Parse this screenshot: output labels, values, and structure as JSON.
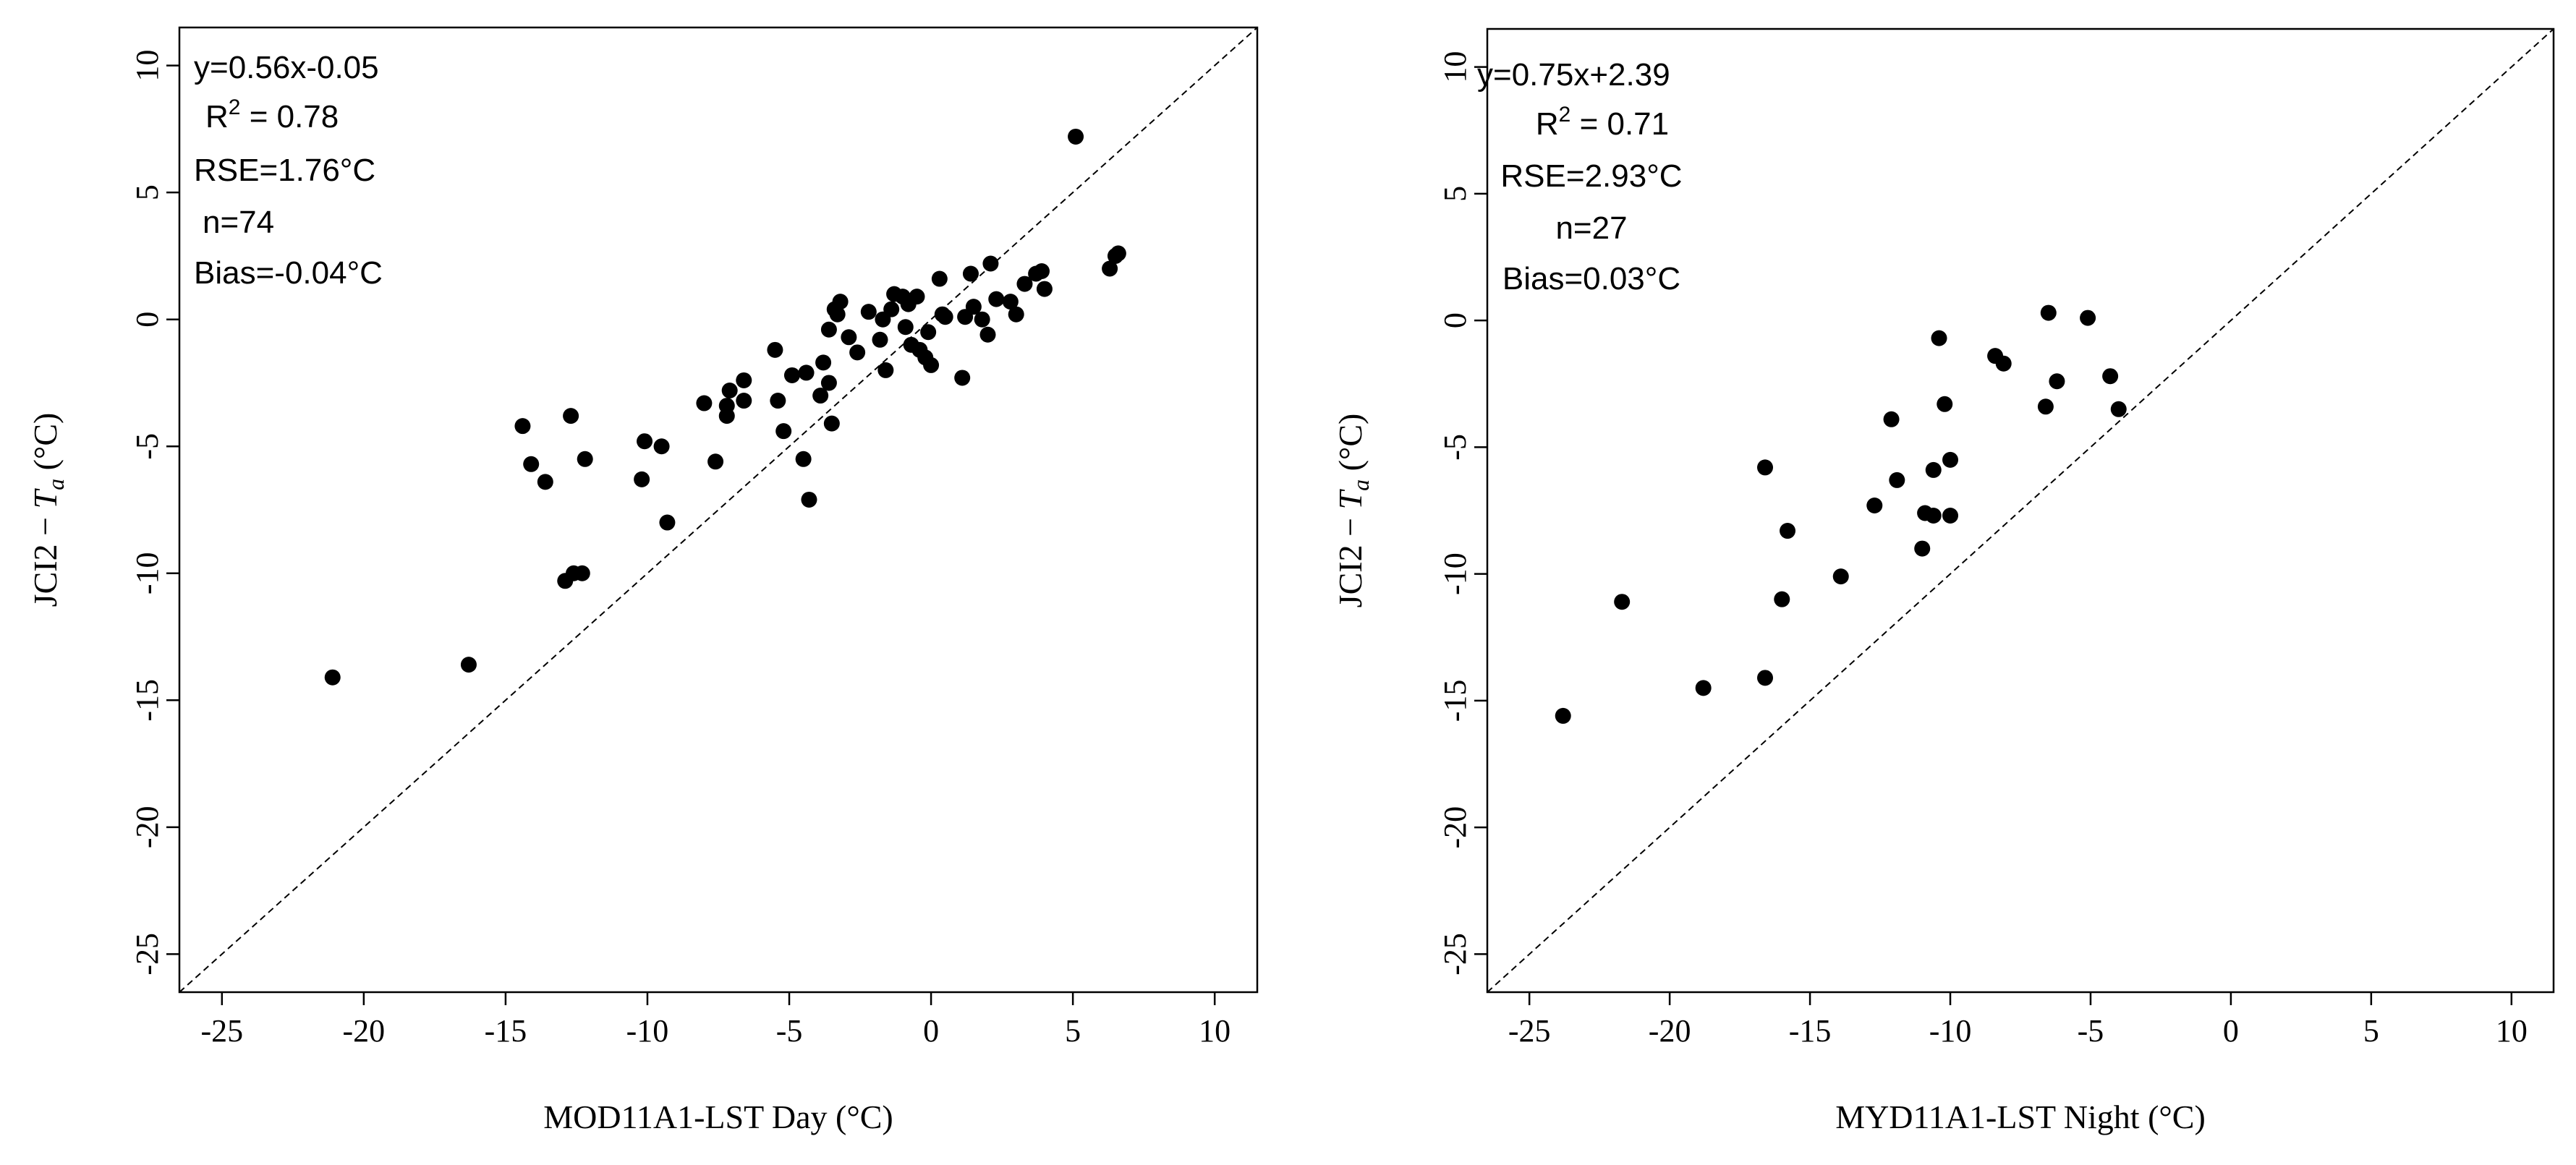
{
  "chart_data": [
    {
      "type": "scatter",
      "xlabel": "MOD11A1-LST Day (°C)",
      "ylabel": "JCI2 − T_a (°C)",
      "ylabel_text": "JCI2 − ",
      "ylabel_var": "T",
      "ylabel_sub": "a",
      "ylabel_unit": " (°C)",
      "xlim": [
        -26.5,
        11.5
      ],
      "ylim": [
        -26.5,
        11.5
      ],
      "xticks": [
        -25,
        -20,
        -15,
        -10,
        -5,
        0,
        5,
        10
      ],
      "xtick_labels": [
        "-25",
        "-20",
        "-15",
        "-10",
        "-5",
        "0",
        "5",
        "10"
      ],
      "yticks": [
        -25,
        -20,
        -15,
        -10,
        -5,
        0,
        5,
        10
      ],
      "ytick_labels": [
        "-25",
        "-20",
        "-15",
        "-10",
        "-5",
        "0",
        "5",
        "10"
      ],
      "reference_line": "1:1",
      "annotations": {
        "equation": "y=0.56x-0.05",
        "r2_label": "R",
        "r2_sup": "2",
        "r2_value": " = 0.78",
        "rse": "RSE=1.76°C",
        "n": "n=74",
        "bias": "Bias=-0.04°C"
      },
      "points": [
        [
          -21.1,
          -14.1
        ],
        [
          -16.3,
          -13.6
        ],
        [
          -14.4,
          -4.2
        ],
        [
          -14.1,
          -5.7
        ],
        [
          -13.6,
          -6.4
        ],
        [
          -12.7,
          -3.8
        ],
        [
          -12.2,
          -5.5
        ],
        [
          -12.9,
          -10.3
        ],
        [
          -12.6,
          -10.0
        ],
        [
          -12.3,
          -10.0
        ],
        [
          -10.1,
          -4.8
        ],
        [
          -10.2,
          -6.3
        ],
        [
          -9.5,
          -5.0
        ],
        [
          -9.3,
          -8.0
        ],
        [
          -8.0,
          -3.3
        ],
        [
          -7.6,
          -5.6
        ],
        [
          -7.2,
          -3.4
        ],
        [
          -7.1,
          -2.8
        ],
        [
          -7.2,
          -3.8
        ],
        [
          -6.6,
          -2.4
        ],
        [
          -6.6,
          -3.2
        ],
        [
          -5.5,
          -1.2
        ],
        [
          -5.4,
          -3.2
        ],
        [
          -5.2,
          -4.4
        ],
        [
          -4.9,
          -2.2
        ],
        [
          -4.5,
          -5.5
        ],
        [
          -4.4,
          -2.1
        ],
        [
          -4.3,
          -7.1
        ],
        [
          -3.9,
          -3.0
        ],
        [
          -3.8,
          -1.7
        ],
        [
          -3.6,
          -0.4
        ],
        [
          -3.6,
          -2.5
        ],
        [
          -3.5,
          -4.1
        ],
        [
          -3.4,
          0.4
        ],
        [
          -3.2,
          0.7
        ],
        [
          -3.3,
          0.2
        ],
        [
          -2.9,
          -0.7
        ],
        [
          -2.6,
          -1.3
        ],
        [
          -2.2,
          0.3
        ],
        [
          -1.8,
          -0.8
        ],
        [
          -1.7,
          0.0
        ],
        [
          -1.6,
          -2.0
        ],
        [
          -1.4,
          0.4
        ],
        [
          -1.3,
          1.0
        ],
        [
          -1.0,
          0.9
        ],
        [
          -0.9,
          -0.3
        ],
        [
          -0.8,
          0.6
        ],
        [
          -0.7,
          -1.0
        ],
        [
          -0.5,
          0.9
        ],
        [
          -0.4,
          -1.2
        ],
        [
          -0.2,
          -1.5
        ],
        [
          -0.1,
          -0.5
        ],
        [
          0.0,
          -1.8
        ],
        [
          0.3,
          1.6
        ],
        [
          0.4,
          0.2
        ],
        [
          0.5,
          0.1
        ],
        [
          1.1,
          -2.3
        ],
        [
          1.2,
          0.1
        ],
        [
          1.4,
          1.8
        ],
        [
          1.5,
          0.5
        ],
        [
          1.8,
          0.0
        ],
        [
          2.0,
          -0.6
        ],
        [
          2.1,
          2.2
        ],
        [
          2.3,
          0.8
        ],
        [
          2.8,
          0.7
        ],
        [
          3.0,
          0.2
        ],
        [
          3.3,
          1.4
        ],
        [
          3.7,
          1.8
        ],
        [
          3.9,
          1.9
        ],
        [
          4.0,
          1.2
        ],
        [
          5.1,
          7.2
        ],
        [
          6.3,
          2.0
        ],
        [
          6.5,
          2.5
        ],
        [
          6.6,
          2.6
        ]
      ]
    },
    {
      "type": "scatter",
      "xlabel": "MYD11A1-LST Night (°C)",
      "ylabel": "JCI2 − T_a (°C)",
      "ylabel_text": "JCI2 − ",
      "ylabel_var": "T",
      "ylabel_sub": "a",
      "ylabel_unit": " (°C)",
      "xlim": [
        -26.5,
        11.5
      ],
      "ylim": [
        -26.5,
        11.5
      ],
      "xticks": [
        -25,
        -20,
        -15,
        -10,
        -5,
        0,
        5,
        10
      ],
      "xtick_labels": [
        "-25",
        "-20",
        "-15",
        "-10",
        "-5",
        "0",
        "5",
        "10"
      ],
      "yticks": [
        -25,
        -20,
        -15,
        -10,
        -5,
        0,
        5,
        10
      ],
      "ytick_labels": [
        "-25",
        "-20",
        "-15",
        "-10",
        "-5",
        "0",
        "5",
        "10"
      ],
      "reference_line": "1:1",
      "annotations": {
        "equation": "y=0.75x+2.39",
        "r2_label": "R",
        "r2_sup": "2",
        "r2_value": " = 0.71",
        "rse": "RSE=2.93°C",
        "n": "n=27",
        "bias": "Bias=0.03°C"
      },
      "points": [
        [
          -23.8,
          -15.6
        ],
        [
          -21.7,
          -11.1
        ],
        [
          -18.8,
          -14.5
        ],
        [
          -16.6,
          -14.1
        ],
        [
          -16.6,
          -5.8
        ],
        [
          -16.0,
          -11.0
        ],
        [
          -15.8,
          -8.3
        ],
        [
          -13.9,
          -10.1
        ],
        [
          -12.7,
          -7.3
        ],
        [
          -12.1,
          -3.9
        ],
        [
          -11.9,
          -6.3
        ],
        [
          -11.0,
          -9.0
        ],
        [
          -10.9,
          -7.6
        ],
        [
          -10.6,
          -7.7
        ],
        [
          -10.6,
          -5.9
        ],
        [
          -10.4,
          -0.7
        ],
        [
          -10.2,
          -3.3
        ],
        [
          -10.0,
          -5.5
        ],
        [
          -10.0,
          -7.7
        ],
        [
          -8.4,
          -1.4
        ],
        [
          -8.1,
          -1.7
        ],
        [
          -6.6,
          -3.4
        ],
        [
          -6.5,
          0.3
        ],
        [
          -6.2,
          -2.4
        ],
        [
          -5.1,
          0.1
        ],
        [
          -4.3,
          -2.2
        ],
        [
          -4.0,
          -3.5
        ]
      ]
    }
  ]
}
